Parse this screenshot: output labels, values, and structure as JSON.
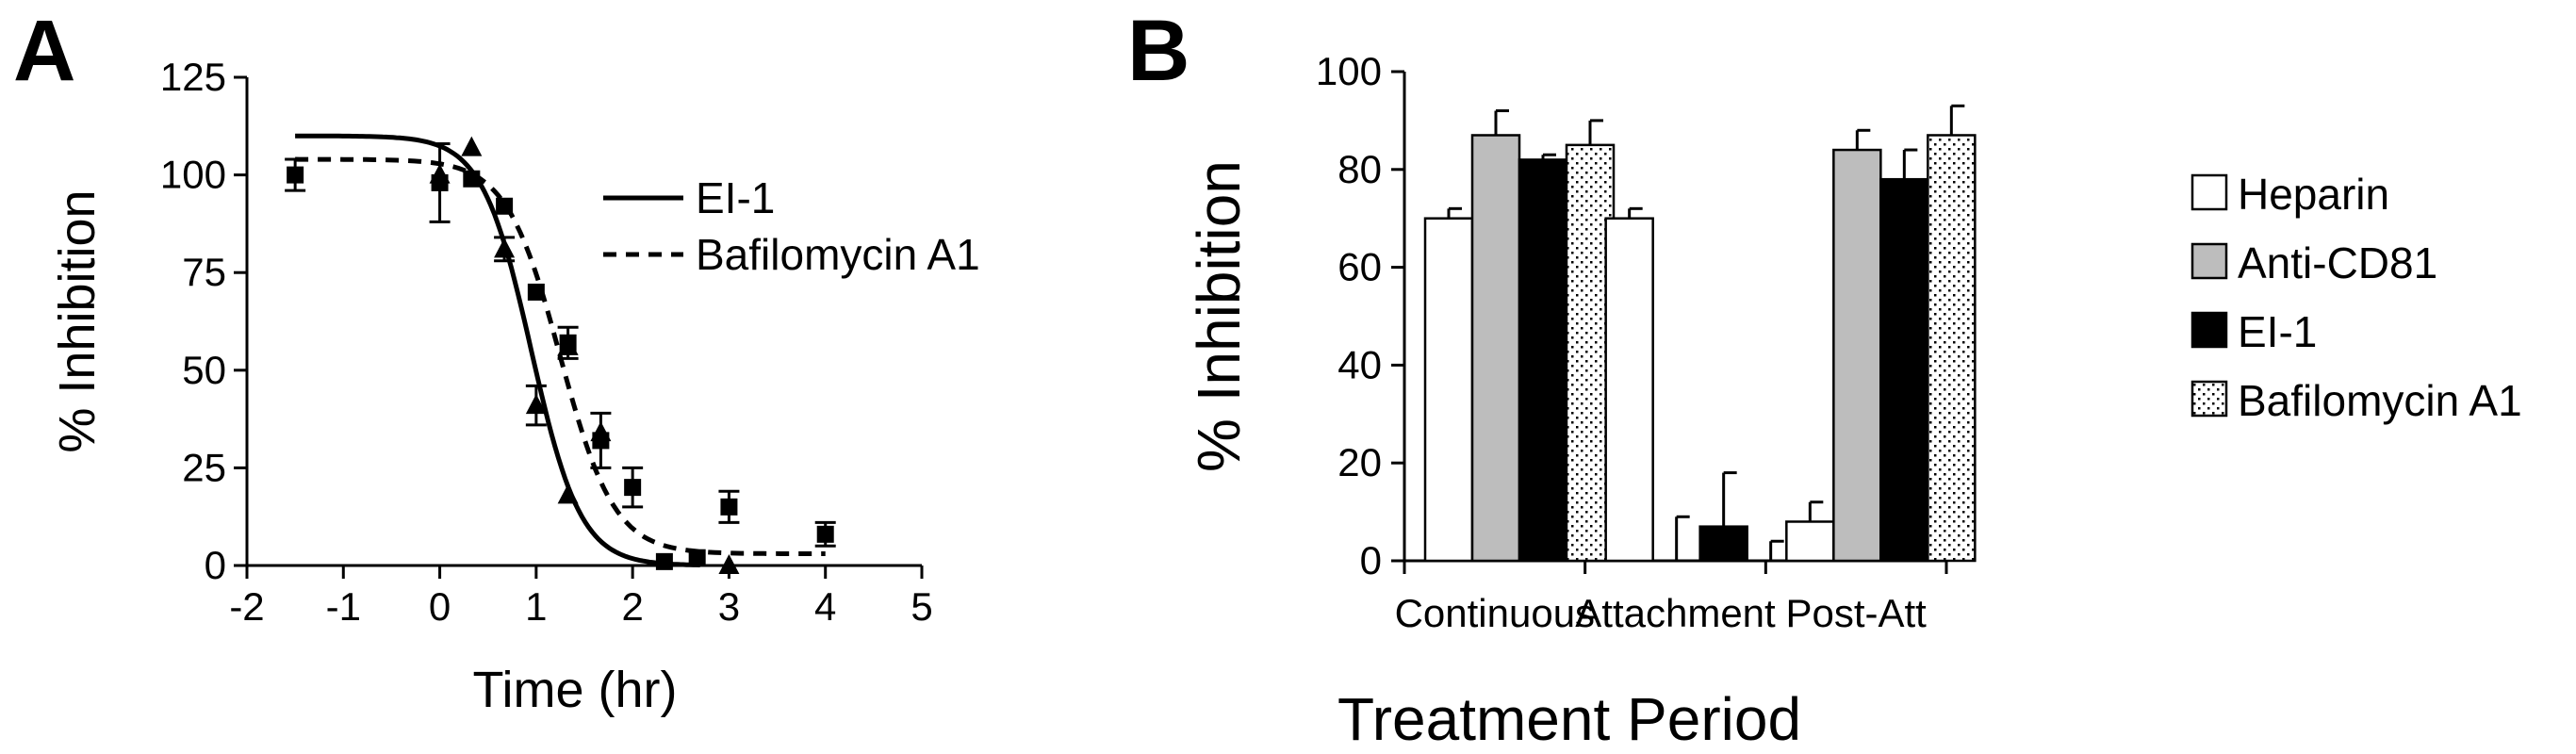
{
  "panels": {
    "a_label": "A",
    "b_label": "B"
  },
  "chart_data": [
    {
      "panel": "A",
      "type": "scatter",
      "xlabel": "Time (hr)",
      "ylabel": "% Inhibition",
      "xlim": [
        -2,
        5
      ],
      "ylim": [
        0,
        125
      ],
      "xticks": [
        "-2",
        "-1",
        "0",
        "1",
        "2",
        "3",
        "4",
        "5"
      ],
      "yticks": [
        "0",
        "25",
        "50",
        "75",
        "100",
        "125"
      ],
      "legend": {
        "position": "top-right",
        "entries": [
          {
            "name": "EI-1",
            "style": "solid"
          },
          {
            "name": "Bafilomycin A1",
            "style": "dashed"
          }
        ]
      },
      "series": [
        {
          "name": "EI-1",
          "marker": "triangle",
          "line": "solid",
          "points": [
            {
              "x": 0,
              "y": 100
            },
            {
              "x": 0.33,
              "y": 107
            },
            {
              "x": 0.67,
              "y": 81,
              "err": 3
            },
            {
              "x": 1.0,
              "y": 41,
              "err": 5
            },
            {
              "x": 1.33,
              "y": 56
            },
            {
              "x": 1.67,
              "y": 34
            },
            {
              "x": 1.33,
              "y": 18
            },
            {
              "x": 3.0,
              "y": 0
            }
          ],
          "fit": {
            "top": 110,
            "bottom": 0,
            "x50": 0.95,
            "slope": 1.7
          }
        },
        {
          "name": "Bafilomycin A1",
          "marker": "square",
          "line": "dashed",
          "points": [
            {
              "x": -1.5,
              "y": 100,
              "err": 4
            },
            {
              "x": 0,
              "y": 98,
              "err": 10
            },
            {
              "x": 0.33,
              "y": 99
            },
            {
              "x": 0.67,
              "y": 92
            },
            {
              "x": 1.0,
              "y": 70
            },
            {
              "x": 1.33,
              "y": 57,
              "err": 4
            },
            {
              "x": 1.67,
              "y": 32,
              "err": 7
            },
            {
              "x": 2.0,
              "y": 20,
              "err": 5
            },
            {
              "x": 2.33,
              "y": 1
            },
            {
              "x": 2.67,
              "y": 2
            },
            {
              "x": 3.0,
              "y": 15,
              "err": 4
            },
            {
              "x": 4.0,
              "y": 8,
              "err": 3
            }
          ],
          "fit": {
            "top": 104,
            "bottom": 3,
            "x50": 1.25,
            "slope": 1.55
          }
        }
      ]
    },
    {
      "panel": "B",
      "type": "bar",
      "xlabel": "Treatment Period",
      "ylabel": "% Inhibition",
      "ylim": [
        0,
        100
      ],
      "yticks": [
        "0",
        "20",
        "40",
        "60",
        "80",
        "100"
      ],
      "categories": [
        "Continuous",
        "Attachment",
        "Post-Att"
      ],
      "legend": {
        "position": "right"
      },
      "series": [
        {
          "name": "Heparin",
          "fill": "white",
          "values": [
            70,
            70,
            8
          ],
          "errors": [
            2,
            2,
            4
          ]
        },
        {
          "name": "Anti-CD81",
          "fill": "#bdbdbd",
          "values": [
            87,
            0,
            84
          ],
          "errors": [
            5,
            9,
            4
          ]
        },
        {
          "name": "EI-1",
          "fill": "black",
          "values": [
            82,
            7,
            78
          ],
          "errors": [
            1,
            11,
            6
          ]
        },
        {
          "name": "Bafilomycin A1",
          "fill": "dotted",
          "values": [
            85,
            0,
            87
          ],
          "errors": [
            5,
            4,
            6
          ]
        }
      ]
    }
  ]
}
